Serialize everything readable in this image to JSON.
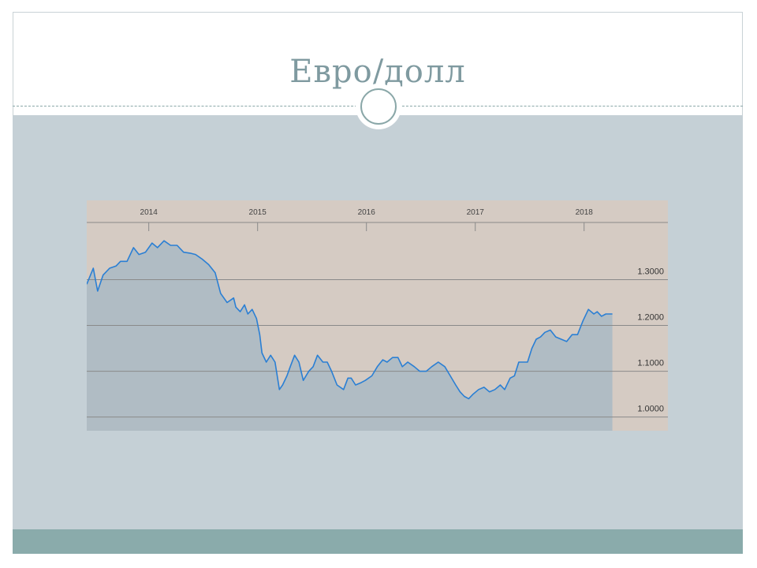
{
  "slide": {
    "title": "Евро/долл",
    "colors": {
      "title": "#7f9aa0",
      "panel": "#c5d0d6",
      "footer": "#8aabab",
      "divider": "#8aa7a8"
    }
  },
  "chart_data": {
    "type": "area",
    "title": "",
    "xlabel": "",
    "ylabel": "",
    "x_ticks": [
      "2014",
      "2015",
      "2016",
      "2017",
      "2018"
    ],
    "x_tick_years": [
      2014,
      2015,
      2016,
      2017,
      2018
    ],
    "y_ticks": [
      1.3,
      1.2,
      1.1,
      1.0
    ],
    "y_tick_labels": [
      "1.3000",
      "1.2000",
      "1.1000",
      "1.0000"
    ],
    "xlim": [
      2013.43,
      2018.77
    ],
    "ylim": [
      0.97,
      1.425
    ],
    "grid": true,
    "legend": "none",
    "colors": {
      "line": "#2a7fd4",
      "fill": "#b0bcc4",
      "background": "#d5cbc3",
      "grid": "#8a8a8a"
    },
    "series": [
      {
        "x": [
          2013.43,
          2013.49,
          2013.53,
          2013.58,
          2013.64,
          2013.7,
          2013.74,
          2013.8,
          2013.86,
          2013.91,
          2013.97,
          2014.03,
          2014.08,
          2014.14,
          2014.2,
          2014.26,
          2014.32,
          2014.38,
          2014.43,
          2014.49,
          2014.55,
          2014.61,
          2014.66,
          2014.72,
          2014.78,
          2014.8,
          2014.84,
          2014.88,
          2014.91,
          2014.95,
          2014.99,
          2015.02,
          2015.04,
          2015.08,
          2015.12,
          2015.16,
          2015.2,
          2015.23,
          2015.27,
          2015.3,
          2015.34,
          2015.38,
          2015.42,
          2015.47,
          2015.51,
          2015.55,
          2015.6,
          2015.64,
          2015.68,
          2015.73,
          2015.79,
          2015.83,
          2015.86,
          2015.9,
          2015.95,
          2015.99,
          2016.05,
          2016.1,
          2016.15,
          2016.19,
          2016.24,
          2016.29,
          2016.33,
          2016.38,
          2016.44,
          2016.49,
          2016.55,
          2016.6,
          2016.66,
          2016.72,
          2016.77,
          2016.82,
          2016.86,
          2016.9,
          2016.94,
          2016.98,
          2017.03,
          2017.08,
          2017.13,
          2017.18,
          2017.23,
          2017.27,
          2017.32,
          2017.36,
          2017.4,
          2017.44,
          2017.48,
          2017.52,
          2017.56,
          2017.6,
          2017.64,
          2017.69,
          2017.74,
          2017.79,
          2017.84,
          2017.89,
          2017.94,
          2017.99,
          2018.04,
          2018.09,
          2018.12,
          2018.16,
          2018.2,
          2018.23,
          2018.26
        ],
        "y": [
          1.29,
          1.325,
          1.275,
          1.31,
          1.325,
          1.33,
          1.34,
          1.34,
          1.37,
          1.355,
          1.36,
          1.38,
          1.37,
          1.385,
          1.375,
          1.375,
          1.36,
          1.358,
          1.355,
          1.345,
          1.333,
          1.315,
          1.27,
          1.25,
          1.26,
          1.24,
          1.23,
          1.245,
          1.225,
          1.235,
          1.215,
          1.18,
          1.14,
          1.12,
          1.135,
          1.12,
          1.06,
          1.07,
          1.09,
          1.11,
          1.135,
          1.12,
          1.08,
          1.1,
          1.11,
          1.135,
          1.12,
          1.12,
          1.1,
          1.07,
          1.06,
          1.085,
          1.085,
          1.07,
          1.075,
          1.08,
          1.09,
          1.11,
          1.125,
          1.12,
          1.13,
          1.13,
          1.11,
          1.12,
          1.11,
          1.1,
          1.1,
          1.11,
          1.12,
          1.11,
          1.09,
          1.07,
          1.055,
          1.045,
          1.04,
          1.05,
          1.06,
          1.065,
          1.055,
          1.06,
          1.07,
          1.06,
          1.085,
          1.09,
          1.12,
          1.12,
          1.12,
          1.15,
          1.17,
          1.175,
          1.185,
          1.19,
          1.175,
          1.17,
          1.165,
          1.18,
          1.18,
          1.21,
          1.235,
          1.225,
          1.23,
          1.22,
          1.225,
          1.225,
          1.225
        ]
      }
    ]
  }
}
